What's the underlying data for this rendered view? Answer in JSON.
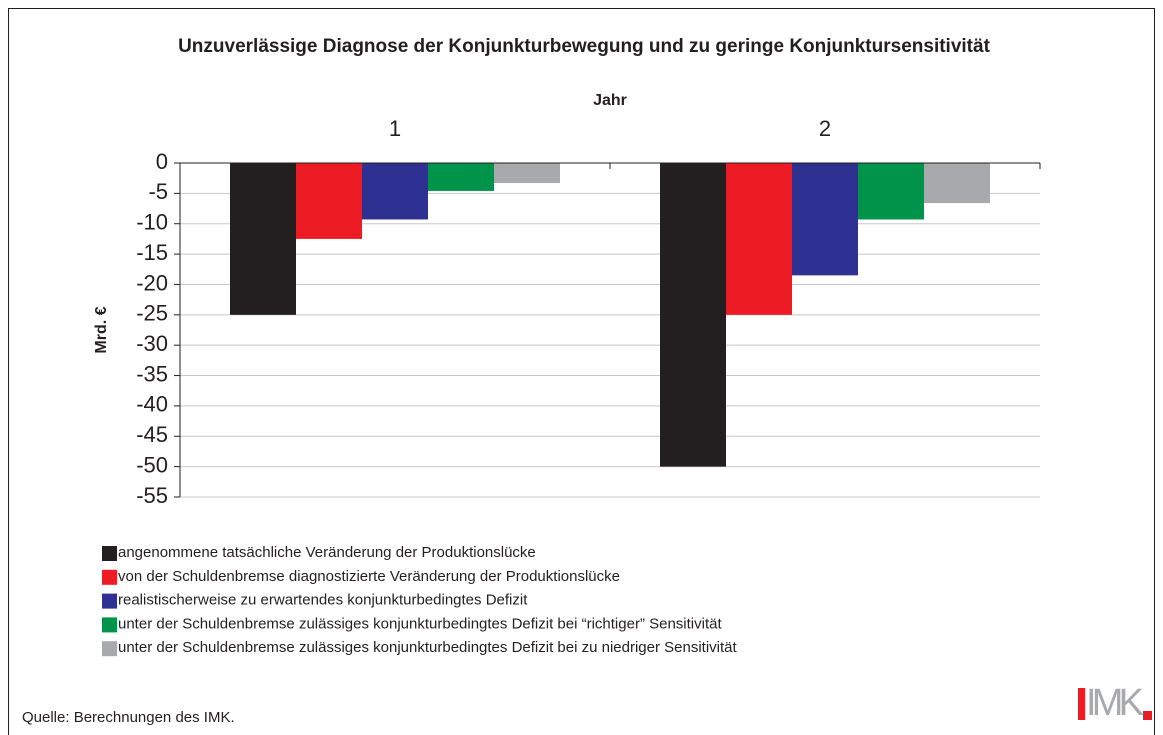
{
  "chart_data": {
    "type": "bar",
    "title": "Unzuverlässige Diagnose der Konjunkturbewegung und zu geringe Konjunktursensitivität",
    "x_label": "Jahr",
    "y_label": "Mrd. €",
    "categories": [
      "1",
      "2"
    ],
    "series": [
      {
        "name": "angenommene tatsächliche Veränderung der Produktionslücke",
        "color": "#231f20",
        "values": [
          -25,
          -50
        ]
      },
      {
        "name": "von der Schuldenbremse diagnostizierte Veränderung der Produktionslücke",
        "color": "#ed1c24",
        "values": [
          -12.5,
          -25
        ]
      },
      {
        "name": "realistischerweise zu erwartendes konjunkturbedingtes Defizit",
        "color": "#2e3192",
        "values": [
          -9.3,
          -18.5
        ]
      },
      {
        "name": "unter der Schuldenbremse zulässiges konjunkturbedingtes Defizit bei “richtiger” Sensitivität",
        "color": "#00934a",
        "values": [
          -4.6,
          -9.3
        ]
      },
      {
        "name": "unter der Schuldenbremse zulässiges konjunkturbedingtes Defizit bei zu niedriger Sensitivität",
        "color": "#a7a9ac",
        "values": [
          -3.3,
          -6.6
        ]
      }
    ],
    "ylim": [
      -55,
      0
    ],
    "yticks": [
      0,
      -5,
      -10,
      -15,
      -20,
      -25,
      -30,
      -35,
      -40,
      -45,
      -50,
      -55
    ],
    "grid": true,
    "source": "Quelle: Berechnungen des IMK.",
    "logo": "IMK"
  }
}
